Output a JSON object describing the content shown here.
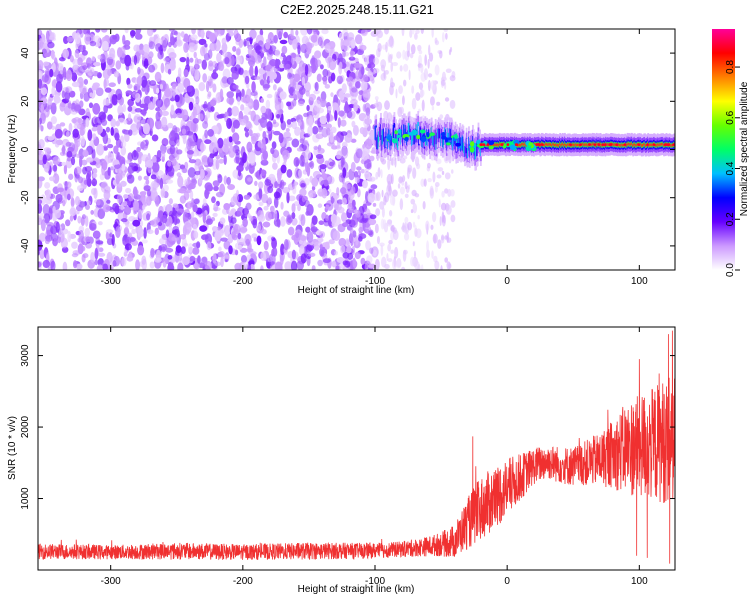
{
  "title": "C2E2.2025.248.15.11.G21",
  "chart_data": [
    {
      "type": "heatmap",
      "name": "spectrogram",
      "xlabel": "Height of straight line (km)",
      "ylabel": "Frequency (Hz)",
      "xlim": [
        -355,
        127
      ],
      "ylim": [
        -50,
        50
      ],
      "xticks": [
        -300,
        -200,
        -100,
        0,
        100
      ],
      "yticks": [
        -40,
        -20,
        0,
        20,
        40
      ],
      "noise_region_x": [
        -355,
        -100
      ],
      "sparse_noise_region_x": [
        -100,
        -40
      ],
      "signal_band": {
        "x_start": -100,
        "x_end": 127,
        "center_frequency_hz": [
          {
            "x": -100,
            "f": 5
          },
          {
            "x": -70,
            "f": 6
          },
          {
            "x": -40,
            "f": 4
          },
          {
            "x": -30,
            "f": 0
          },
          {
            "x": -20,
            "f": 2
          },
          {
            "x": 0,
            "f": 2
          },
          {
            "x": 50,
            "f": 2
          },
          {
            "x": 127,
            "f": 2
          }
        ],
        "peak_amplitude_start_x": -20
      },
      "colorbar": {
        "label": "Normalized spectral amplitude",
        "range": [
          0.0,
          0.95
        ],
        "ticks": [
          "0.0",
          "0.2",
          "0.4",
          "0.6",
          "0.8"
        ],
        "tick_values": [
          0.0,
          0.2,
          0.4,
          0.6,
          0.8
        ],
        "colormap": [
          "#ffffff",
          "#cc99ff",
          "#6600ff",
          "#0000ff",
          "#00bfff",
          "#00ff66",
          "#66ff00",
          "#ffff00",
          "#ff8000",
          "#ff0000",
          "#ff0099"
        ]
      }
    },
    {
      "type": "line",
      "name": "snr",
      "xlabel": "Height of straight line (km)",
      "ylabel": "SNR (10 * v/v)",
      "xlim": [
        -355,
        127
      ],
      "ylim": [
        0,
        3400
      ],
      "xticks": [
        -300,
        -200,
        -100,
        0,
        100
      ],
      "yticks": [
        1000,
        2000,
        3000
      ],
      "color": "#f03030",
      "series": [
        {
          "name": "SNR",
          "x": [
            -355,
            -300,
            -250,
            -200,
            -150,
            -100,
            -80,
            -60,
            -50,
            -40,
            -30,
            -25,
            -20,
            -10,
            0,
            10,
            20,
            30,
            40,
            50,
            60,
            70,
            80,
            90,
            100,
            110,
            120,
            127
          ],
          "mean": [
            260,
            250,
            265,
            250,
            265,
            270,
            290,
            330,
            360,
            400,
            650,
            750,
            850,
            1000,
            1150,
            1300,
            1450,
            1520,
            1470,
            1450,
            1500,
            1550,
            1620,
            1700,
            1740,
            1760,
            1820,
            1900
          ],
          "spread": [
            110,
            100,
            120,
            110,
            120,
            110,
            110,
            140,
            170,
            240,
            360,
            420,
            450,
            450,
            420,
            330,
            260,
            250,
            260,
            280,
            320,
            380,
            480,
            650,
            750,
            800,
            900,
            950
          ]
        }
      ],
      "spikes": [
        {
          "x": -26,
          "y": 1870
        },
        {
          "x": 100,
          "y": 2950
        },
        {
          "x": 115,
          "y": 2750
        },
        {
          "x": 122,
          "y": 3300
        },
        {
          "x": 125,
          "y": 3350
        }
      ],
      "dips": [
        {
          "x": 98,
          "y": 200
        },
        {
          "x": 106,
          "y": 170
        },
        {
          "x": 123,
          "y": 90
        }
      ]
    }
  ]
}
